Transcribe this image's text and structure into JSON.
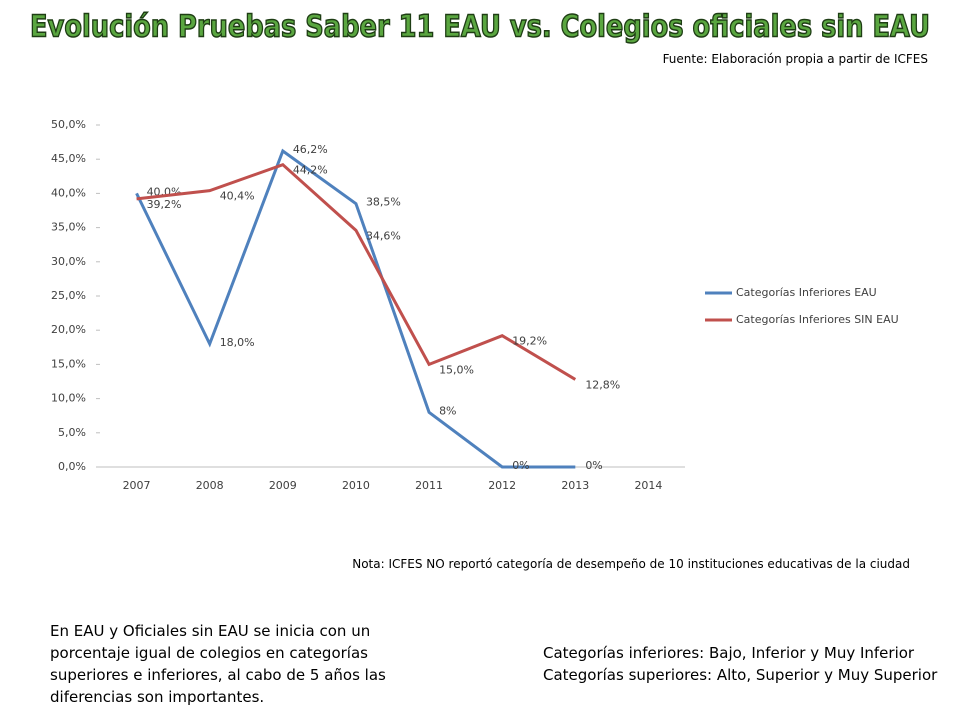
{
  "title": "Evolución Pruebas Saber 11 EAU vs. Colegios oficiales sin EAU",
  "source": "Fuente: Elaboración propia a partir de ICFES",
  "note": "Nota: ICFES NO reportó categoría de desempeño de 10 instituciones educativas de la ciudad",
  "paragraph": "En EAU y Oficiales sin EAU se inicia con un porcentaje igual de colegios en categorías superiores e inferiores, al cabo de 5 años las diferencias son importantes.",
  "definitions": [
    "Categorías inferiores: Bajo, Inferior y Muy Inferior",
    "Categorías superiores: Alto, Superior y Muy Superior"
  ],
  "chart_data": {
    "type": "line",
    "categories": [
      "2007",
      "2008",
      "2009",
      "2010",
      "2011",
      "2012",
      "2013",
      "2014"
    ],
    "series": [
      {
        "name": "Categorías Inferiores EAU",
        "color": "#4f81bd",
        "values": [
          40.0,
          18.0,
          46.2,
          38.5,
          8,
          0,
          0,
          null
        ],
        "value_labels": [
          "40,0%",
          "18,0%",
          "46,2%",
          "38,5%",
          "8%",
          "0%",
          "0%",
          null
        ]
      },
      {
        "name": "Categorías Inferiores SIN EAU",
        "color": "#c0504d",
        "values": [
          39.2,
          40.4,
          44.2,
          34.6,
          15.0,
          19.2,
          12.8,
          null
        ],
        "value_labels": [
          "39,2%",
          "40,4%",
          "44,2%",
          "34,6%",
          "15,0%",
          "19,2%",
          "12,8%",
          null
        ]
      }
    ],
    "ylim": [
      0,
      50
    ],
    "yticks": [
      {
        "value": 0,
        "label": "0,0%"
      },
      {
        "value": 5,
        "label": "5,0%"
      },
      {
        "value": 10,
        "label": "10,0%"
      },
      {
        "value": 15,
        "label": "15,0%"
      },
      {
        "value": 20,
        "label": "20,0%"
      },
      {
        "value": 25,
        "label": "25,0%"
      },
      {
        "value": 30,
        "label": "30,0%"
      },
      {
        "value": 35,
        "label": "35,0%"
      },
      {
        "value": 40,
        "label": "40,0%"
      },
      {
        "value": 45,
        "label": "45,0%"
      },
      {
        "value": 50,
        "label": "50,0%"
      }
    ],
    "legend": "right"
  }
}
